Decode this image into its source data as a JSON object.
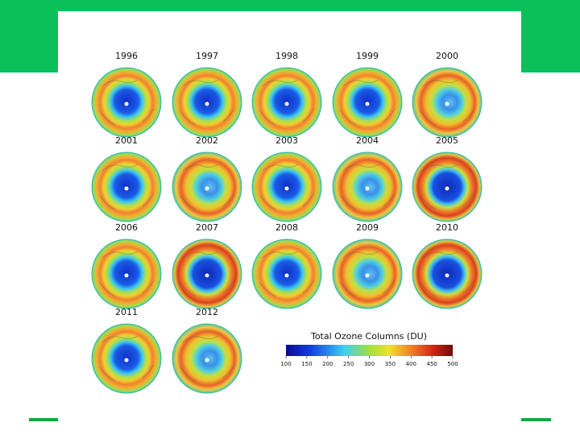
{
  "maps": [
    {
      "year": "1996"
    },
    {
      "year": "1997"
    },
    {
      "year": "1998"
    },
    {
      "year": "1999"
    },
    {
      "year": "2000"
    },
    {
      "year": "2001"
    },
    {
      "year": "2002"
    },
    {
      "year": "2003"
    },
    {
      "year": "2004"
    },
    {
      "year": "2005"
    },
    {
      "year": "2006"
    },
    {
      "year": "2007"
    },
    {
      "year": "2008"
    },
    {
      "year": "2009"
    },
    {
      "year": "2010"
    },
    {
      "year": "2011"
    },
    {
      "year": "2012"
    }
  ],
  "colorbar": {
    "title": "Total Ozone Columns (DU)",
    "range": [
      100,
      500
    ],
    "ticks": [
      100,
      150,
      200,
      250,
      300,
      350,
      400,
      450,
      500
    ]
  }
}
